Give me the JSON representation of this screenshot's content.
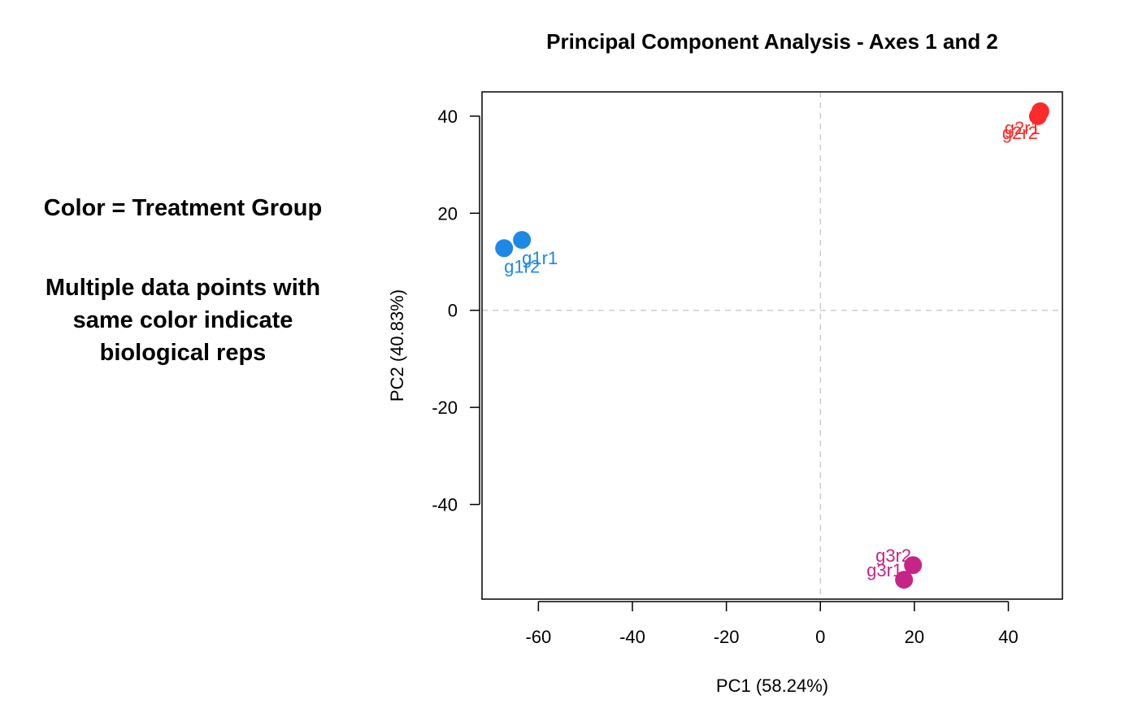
{
  "notes": {
    "legend_line": "Color = Treatment Group",
    "reps_line_1": "Multiple data points with",
    "reps_line_2": "same color  indicate",
    "reps_line_3": "biological reps"
  },
  "chart_data": {
    "type": "scatter",
    "title": "Principal Component Analysis - Axes 1 and 2",
    "xlabel": "PC1 (58.24%)",
    "ylabel": "PC2 (40.83%)",
    "xlim": [
      -72,
      51.5
    ],
    "ylim": [
      -59.5,
      45
    ],
    "xticks": [
      -60,
      -40,
      -20,
      0,
      20,
      40
    ],
    "yticks": [
      -40,
      -20,
      0,
      20,
      40
    ],
    "reference_lines": {
      "x": 0,
      "y": 0,
      "style": "dashed",
      "color": "#cccccc"
    },
    "grid": false,
    "points": [
      {
        "label": "g1r1",
        "x": -63.5,
        "y": 14.5,
        "color": "#1e88e5",
        "label_pos": "below-right"
      },
      {
        "label": "g1r2",
        "x": -67.3,
        "y": 12.8,
        "color": "#1e88e5",
        "label_pos": "below-right"
      },
      {
        "label": "g2r1",
        "x": 46.8,
        "y": 41.0,
        "color": "#ff2a2a",
        "label_pos": "below-left"
      },
      {
        "label": "g2r2",
        "x": 46.3,
        "y": 40.0,
        "color": "#ff2a2a",
        "label_pos": "below-left"
      },
      {
        "label": "g3r1",
        "x": 17.8,
        "y": -55.5,
        "color": "#c72488",
        "label_pos": "above-left"
      },
      {
        "label": "g3r2",
        "x": 19.7,
        "y": -52.5,
        "color": "#c72488",
        "label_pos": "above-left"
      }
    ]
  }
}
